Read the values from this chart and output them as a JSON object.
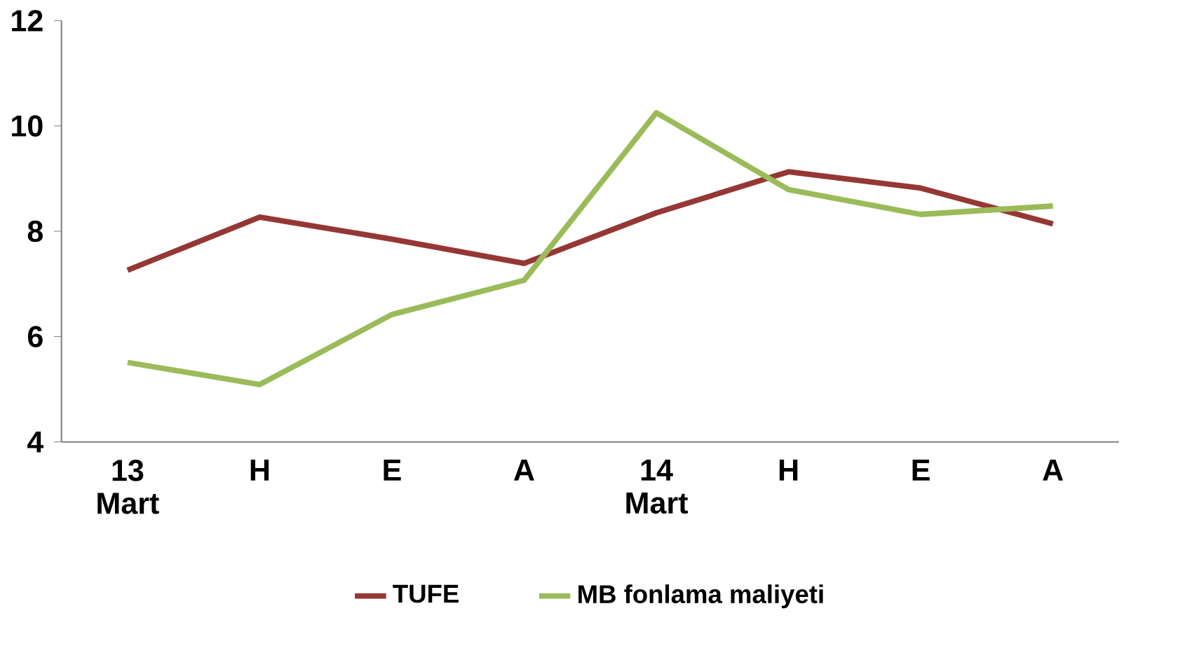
{
  "chart_data": {
    "type": "line",
    "categories": [
      "13 Mart",
      "H",
      "E",
      "A",
      "14 Mart",
      "H",
      "E",
      "A"
    ],
    "series": [
      {
        "name": "TUFE",
        "color": "#953735",
        "values": [
          7.26,
          8.27,
          7.85,
          7.39,
          8.35,
          9.13,
          8.82,
          8.14
        ]
      },
      {
        "name": "MB fonlama maliyeti",
        "color": "#9bbb59",
        "values": [
          5.51,
          5.09,
          6.42,
          7.07,
          10.25,
          8.79,
          8.32,
          8.48
        ]
      }
    ],
    "ylim": [
      4,
      12
    ],
    "yticks": [
      4,
      6,
      8,
      10,
      12
    ],
    "grid": false,
    "legend": "bottom",
    "marker": "none",
    "line_style": "solid"
  }
}
